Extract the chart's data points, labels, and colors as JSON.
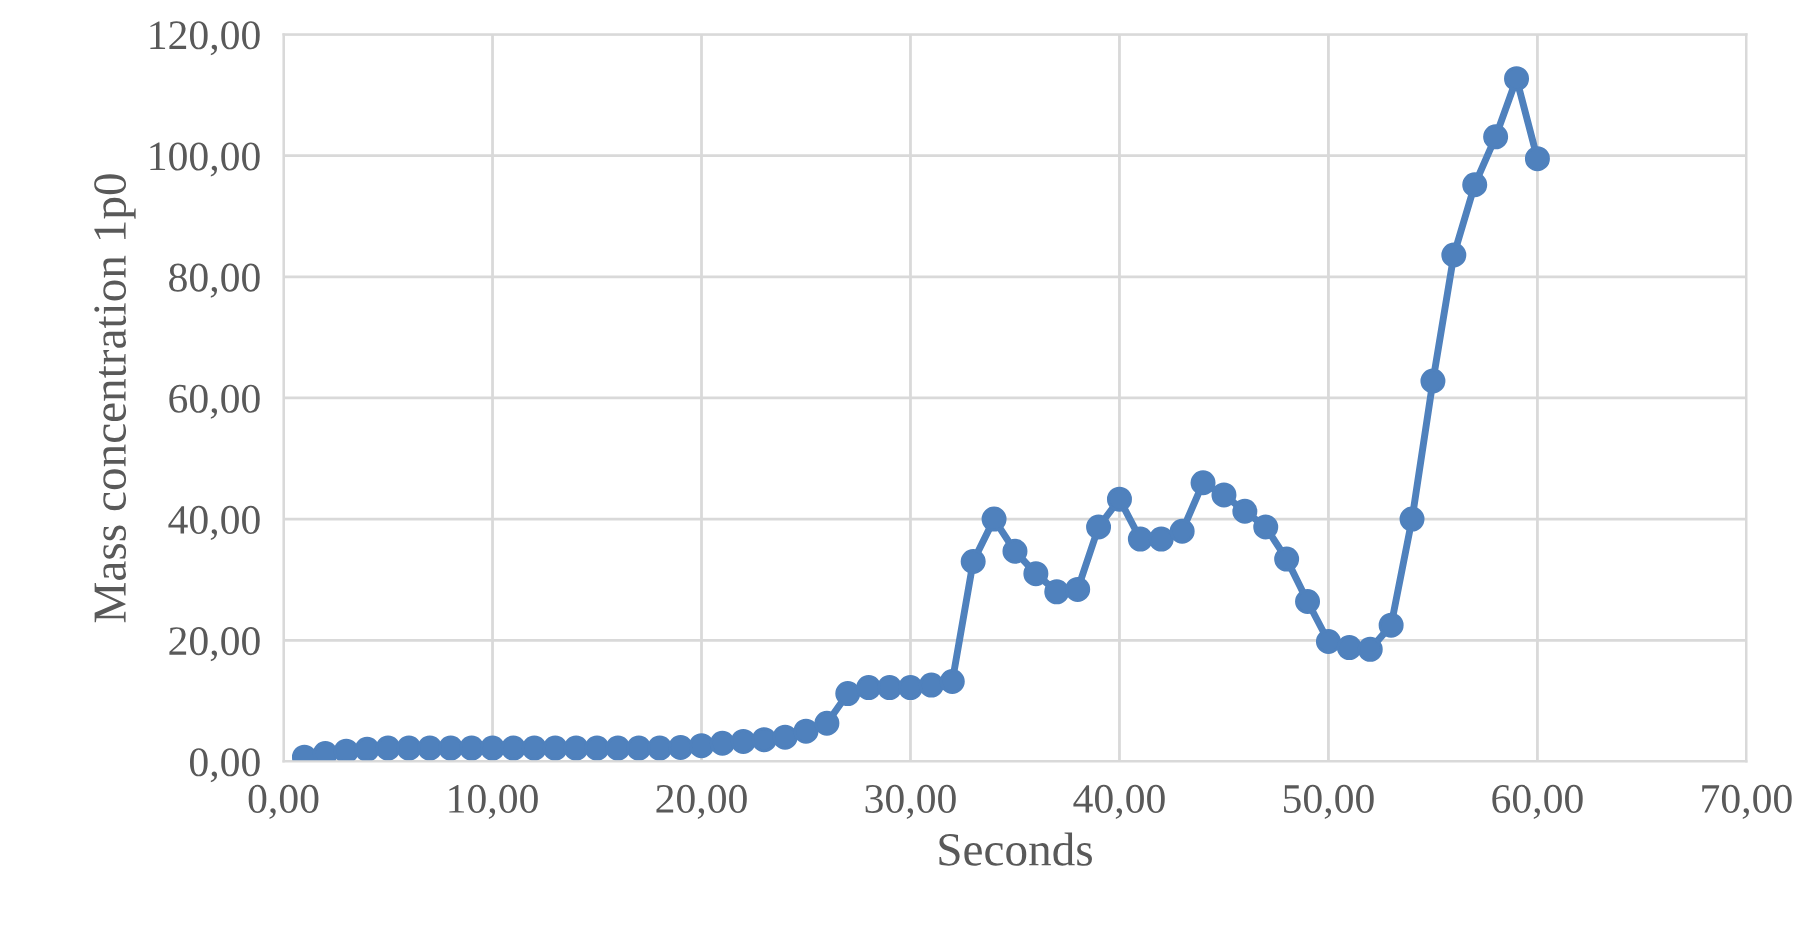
{
  "chart_data": {
    "type": "line",
    "xlabel": "Seconds",
    "ylabel": "Mass concentration 1p0",
    "series": [
      {
        "color": "#4f81bd",
        "x": [
          1,
          2,
          3,
          4,
          5,
          6,
          7,
          8,
          9,
          10,
          11,
          12,
          13,
          14,
          15,
          16,
          17,
          18,
          19,
          20,
          21,
          22,
          23,
          24,
          25,
          26,
          27,
          28,
          29,
          30,
          31,
          32,
          33,
          34,
          35,
          36,
          37,
          38,
          39,
          40,
          41,
          42,
          43,
          44,
          45,
          46,
          47,
          48,
          49,
          50,
          51,
          52,
          53,
          54,
          55,
          56,
          57,
          58,
          59,
          60
        ],
        "values": [
          0.7,
          1.3,
          1.7,
          2.0,
          2.2,
          2.2,
          2.2,
          2.2,
          2.2,
          2.2,
          2.2,
          2.2,
          2.2,
          2.2,
          2.2,
          2.2,
          2.2,
          2.2,
          2.3,
          2.6,
          3.0,
          3.3,
          3.6,
          4.0,
          5.0,
          6.3,
          11.2,
          12.2,
          12.2,
          12.2,
          12.6,
          13.2,
          33,
          40,
          34.7,
          31,
          28,
          28.4,
          38.7,
          43.3,
          36.7,
          36.7,
          38,
          46,
          44,
          41.3,
          38.7,
          33.4,
          26.4,
          19.8,
          18.8,
          18.5,
          22.5,
          40,
          62.8,
          83.6,
          95.2,
          103.1,
          112.7,
          99.5
        ]
      }
    ],
    "xlim": [
      0,
      70
    ],
    "ylim": [
      0,
      120
    ],
    "xticks": [
      {
        "value": 0,
        "label": "0,00"
      },
      {
        "value": 10,
        "label": "10,00"
      },
      {
        "value": 20,
        "label": "20,00"
      },
      {
        "value": 30,
        "label": "30,00"
      },
      {
        "value": 40,
        "label": "40,00"
      },
      {
        "value": 50,
        "label": "50,00"
      },
      {
        "value": 60,
        "label": "60,00"
      },
      {
        "value": 70,
        "label": "70,00"
      }
    ],
    "yticks": [
      {
        "value": 0,
        "label": "0,00"
      },
      {
        "value": 20,
        "label": "20,00"
      },
      {
        "value": 40,
        "label": "40,00"
      },
      {
        "value": 60,
        "label": "60,00"
      },
      {
        "value": 80,
        "label": "80,00"
      },
      {
        "value": 100,
        "label": "100,00"
      },
      {
        "value": 120,
        "label": "120,00"
      }
    ],
    "grid": true,
    "marker": "circle",
    "line_style": "solid"
  }
}
